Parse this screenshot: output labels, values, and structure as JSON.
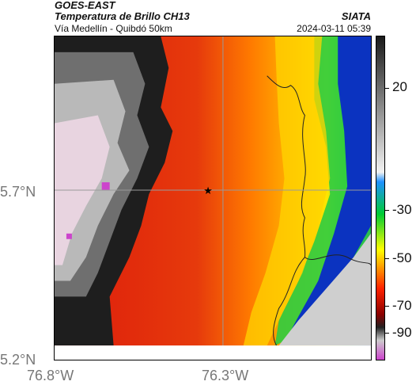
{
  "header": {
    "title_line1": "GOES-EAST",
    "title_line2": "Temperatura de Brillo CH13",
    "subtitle": "Vía Medellín - Quibdó 50km",
    "brand": "SIATA",
    "datetime": "2024-03-11 05:39"
  },
  "axes": {
    "lat_labels": [
      "5.7°N",
      "5.2°N"
    ],
    "lon_labels": [
      "76.8°W",
      "76.3°W"
    ]
  },
  "colorbar": {
    "labels": [
      "20",
      "-30",
      "-50",
      "-70",
      "-90"
    ],
    "colors": [
      "#1a1a1a",
      "#f2f2f2",
      "#1e90ff",
      "#00cc33",
      "#ffff00",
      "#ff2200",
      "#8b0000",
      "#cc44cc"
    ]
  },
  "map": {
    "marker": "star-icon",
    "colors": {
      "cold_top": "#1e1e1e",
      "very_cold": "#e8d4e0",
      "red": "#dd1b0c",
      "orange": "#ff8a00",
      "yellow": "#ffe000",
      "green": "#2ecc40",
      "blue": "#0b33c0",
      "land": "#cfcfcf"
    }
  }
}
